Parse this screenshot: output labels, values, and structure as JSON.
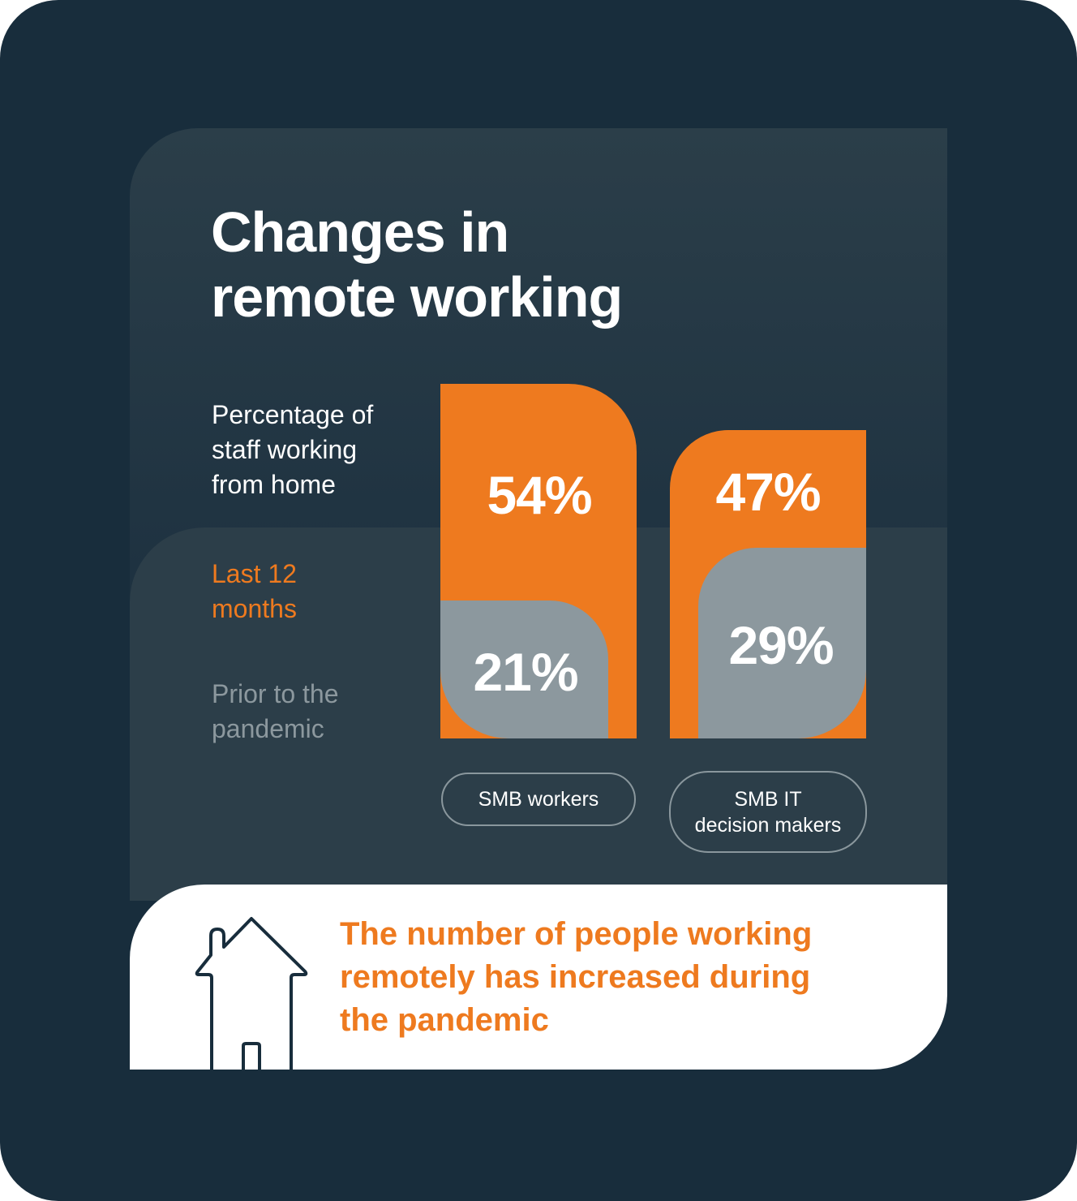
{
  "title_lines": [
    "Changes in",
    "remote working"
  ],
  "legend": {
    "measure_lines": [
      "Percentage of",
      "staff working",
      "from home"
    ],
    "recent_lines": [
      "Last 12",
      "months"
    ],
    "prior_lines": [
      "Prior to the",
      "pandemic"
    ]
  },
  "colors": {
    "background": "#182d3c",
    "recent": "#ee7a1f",
    "prior": "#8c989e",
    "text": "#ffffff"
  },
  "chart_data": {
    "type": "bar",
    "categories": [
      "SMB workers",
      "SMB IT decision makers"
    ],
    "category_lines": [
      [
        "SMB workers"
      ],
      [
        "SMB IT",
        "decision makers"
      ]
    ],
    "series": [
      {
        "name": "Last 12 months",
        "values": [
          54,
          47
        ],
        "labels": [
          "54%",
          "47%"
        ]
      },
      {
        "name": "Prior to the pandemic",
        "values": [
          21,
          29
        ],
        "labels": [
          "21%",
          "29%"
        ]
      }
    ],
    "unit": "%"
  },
  "footer": {
    "message_lines": [
      "The number of people working",
      "remotely has increased during",
      "the pandemic"
    ],
    "icon": "house-icon"
  }
}
